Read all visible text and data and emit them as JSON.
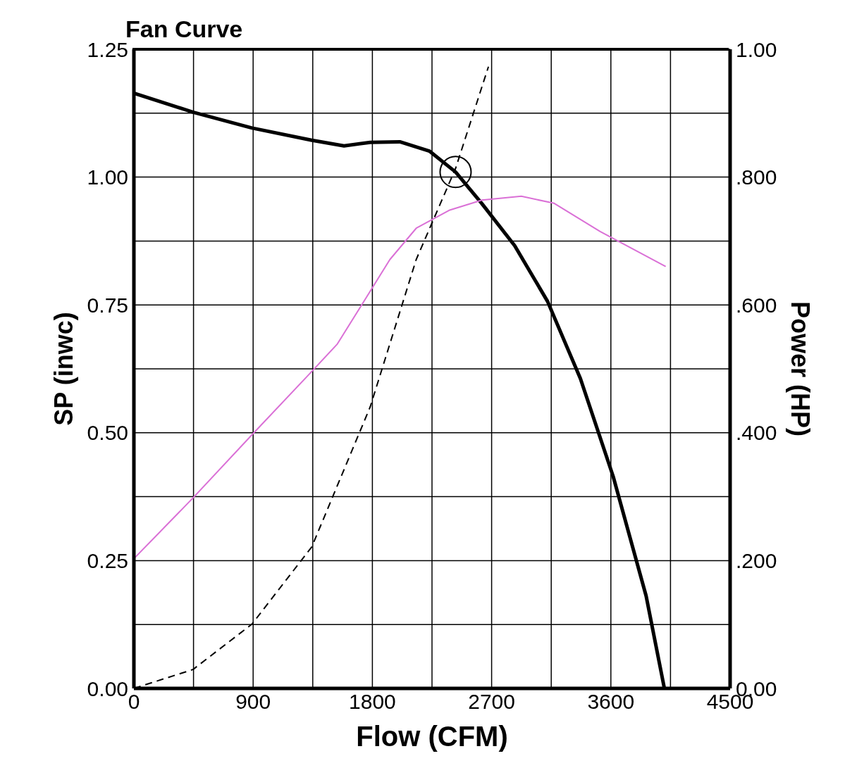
{
  "chart_data": {
    "type": "line",
    "title": "Fan Curve",
    "xlabel": "Flow (CFM)",
    "ylabel": "SP (inwc)",
    "y2label": "Power (HP)",
    "xlim": [
      0,
      4500
    ],
    "xticks": [
      0,
      {
        "value": 450,
        "label": null
      },
      900,
      {
        "value": 1350,
        "label": null
      },
      1800,
      {
        "value": 2250,
        "label": null
      },
      2700,
      {
        "value": 3150,
        "label": null
      },
      3600,
      {
        "value": 4050,
        "label": null
      },
      4500
    ],
    "ylim": [
      0,
      1.25
    ],
    "yticks": [
      {
        "value": 0,
        "label": "0.00"
      },
      {
        "value": 0.125,
        "label": null
      },
      0.25,
      {
        "value": 0.375,
        "label": null
      },
      {
        "value": 0.5,
        "label": "0.50"
      },
      {
        "value": 0.625,
        "label": null
      },
      0.75,
      {
        "value": 0.875,
        "label": null
      },
      {
        "value": 1,
        "label": "1.00"
      },
      {
        "value": 1.125,
        "label": null
      },
      1.25
    ],
    "y2lim": [
      0,
      1
    ],
    "y2ticks": [
      {
        "value": 0,
        "label": "0.00"
      },
      {
        "value": 0.2,
        "label": ".200"
      },
      {
        "value": 0.4,
        "label": ".400"
      },
      {
        "value": 0.6,
        "label": ".600"
      },
      {
        "value": 0.8,
        "label": ".800"
      },
      {
        "value": 1,
        "label": "1.00"
      }
    ],
    "grid": true,
    "legend": false,
    "series": [
      {
        "color": "#000000",
        "line_style": "solid",
        "x": [
          0,
          446,
          892,
          1343,
          1586,
          1784,
          2007,
          2230,
          2428,
          2627,
          2874,
          3122,
          3370,
          3618,
          3866,
          4004
        ],
        "values": [
          1.164,
          1.127,
          1.096,
          1.072,
          1.061,
          1.068,
          1.069,
          1.051,
          1.01,
          0.948,
          0.866,
          0.757,
          0.606,
          0.414,
          0.181,
          0
        ]
      },
      {
        "axis": "y2",
        "color": "#da70d6",
        "line_style": "solid",
        "x": [
          0,
          0,
          446,
          892,
          1343,
          1536,
          1734,
          1932,
          2131,
          2379,
          2627,
          2924,
          3172,
          3519,
          4014
        ],
        "values": [
          0,
          0.203,
          0.298,
          0.397,
          0.496,
          0.539,
          0.605,
          0.671,
          0.72,
          0.748,
          0.764,
          0.77,
          0.759,
          0.715,
          0.66
        ]
      },
      {
        "color": "#000000",
        "line_style": "dashed",
        "x": [
          0,
          446,
          892,
          1343,
          1784,
          2131,
          2428,
          2676
        ],
        "values": [
          0,
          0.037,
          0.126,
          0.277,
          0.551,
          0.839,
          1.017,
          1.216
        ]
      },
      {
        "type": "scatter",
        "color": "#000000",
        "marker": "circle",
        "x": [
          2428
        ],
        "values": [
          1.01
        ]
      }
    ]
  }
}
